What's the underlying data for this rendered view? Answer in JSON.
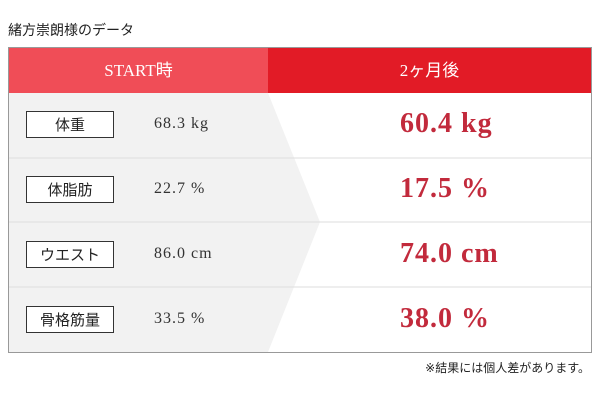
{
  "title": "緒方崇朗様のデータ",
  "table": {
    "headers": [
      "START時",
      "2ヶ月後"
    ],
    "rows": [
      [
        "体重",
        "68.3 kg",
        "60.4 kg"
      ],
      [
        "体脂肪",
        "22.7 %",
        "17.5 %"
      ],
      [
        "ウエスト",
        "86.0 cm",
        "74.0 cm"
      ],
      [
        "骨格筋量",
        "33.5 %",
        "38.0 %"
      ]
    ]
  },
  "note": "※結果には個人差があります。"
}
